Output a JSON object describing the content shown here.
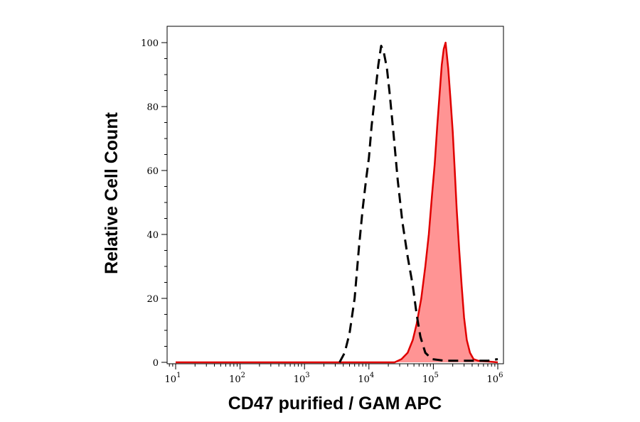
{
  "chart_data": {
    "type": "area",
    "title": "",
    "xlabel": "CD47 purified / GAM APC",
    "ylabel": "Relative Cell Count",
    "x_scale": "log",
    "xlim": [
      10,
      1000000
    ],
    "ylim": [
      0,
      100
    ],
    "grid": false,
    "x_ticks": [
      {
        "base": "10",
        "exp": "1",
        "value": 10
      },
      {
        "base": "10",
        "exp": "2",
        "value": 100
      },
      {
        "base": "10",
        "exp": "3",
        "value": 1000
      },
      {
        "base": "10",
        "exp": "4",
        "value": 10000
      },
      {
        "base": "10",
        "exp": "5",
        "value": 100000
      },
      {
        "base": "10",
        "exp": "6",
        "value": 1000000
      }
    ],
    "y_ticks": [
      {
        "label": "0",
        "value": 0
      },
      {
        "label": "20",
        "value": 20
      },
      {
        "label": "40",
        "value": 40
      },
      {
        "label": "60",
        "value": 60
      },
      {
        "label": "80",
        "value": 80
      },
      {
        "label": "100",
        "value": 100
      }
    ],
    "series": [
      {
        "style": "dashed",
        "color": "#000000",
        "fill": "none",
        "points": [
          [
            3500,
            0
          ],
          [
            4200,
            3
          ],
          [
            5000,
            9
          ],
          [
            6000,
            20
          ],
          [
            7000,
            36
          ],
          [
            8000,
            48
          ],
          [
            9000,
            57
          ],
          [
            10000,
            64
          ],
          [
            11000,
            74
          ],
          [
            12500,
            84
          ],
          [
            14000,
            93
          ],
          [
            15500,
            99
          ],
          [
            17000,
            97
          ],
          [
            19000,
            92
          ],
          [
            21000,
            84
          ],
          [
            24000,
            72
          ],
          [
            28000,
            57
          ],
          [
            33000,
            44
          ],
          [
            40000,
            33
          ],
          [
            48000,
            24
          ],
          [
            55000,
            15
          ],
          [
            63000,
            8
          ],
          [
            75000,
            3
          ],
          [
            95000,
            1
          ],
          [
            150000,
            0.5
          ],
          [
            300000,
            0.5
          ],
          [
            700000,
            0.5
          ],
          [
            1000000,
            1
          ]
        ]
      },
      {
        "style": "solid",
        "color": "#e00000",
        "fill": "#ff9494",
        "points": [
          [
            10,
            0
          ],
          [
            5000,
            0
          ],
          [
            25000,
            0
          ],
          [
            32000,
            1
          ],
          [
            40000,
            3
          ],
          [
            48000,
            7
          ],
          [
            55000,
            12
          ],
          [
            65000,
            20
          ],
          [
            75000,
            30
          ],
          [
            85000,
            40
          ],
          [
            95000,
            52
          ],
          [
            105000,
            62
          ],
          [
            115000,
            74
          ],
          [
            125000,
            84
          ],
          [
            135000,
            93
          ],
          [
            145000,
            98
          ],
          [
            155000,
            100
          ],
          [
            170000,
            92
          ],
          [
            185000,
            82
          ],
          [
            200000,
            72
          ],
          [
            215000,
            60
          ],
          [
            230000,
            48
          ],
          [
            250000,
            36
          ],
          [
            275000,
            24
          ],
          [
            300000,
            14
          ],
          [
            330000,
            7
          ],
          [
            370000,
            3
          ],
          [
            420000,
            1
          ],
          [
            500000,
            0.5
          ],
          [
            1000000,
            0
          ]
        ]
      }
    ]
  }
}
